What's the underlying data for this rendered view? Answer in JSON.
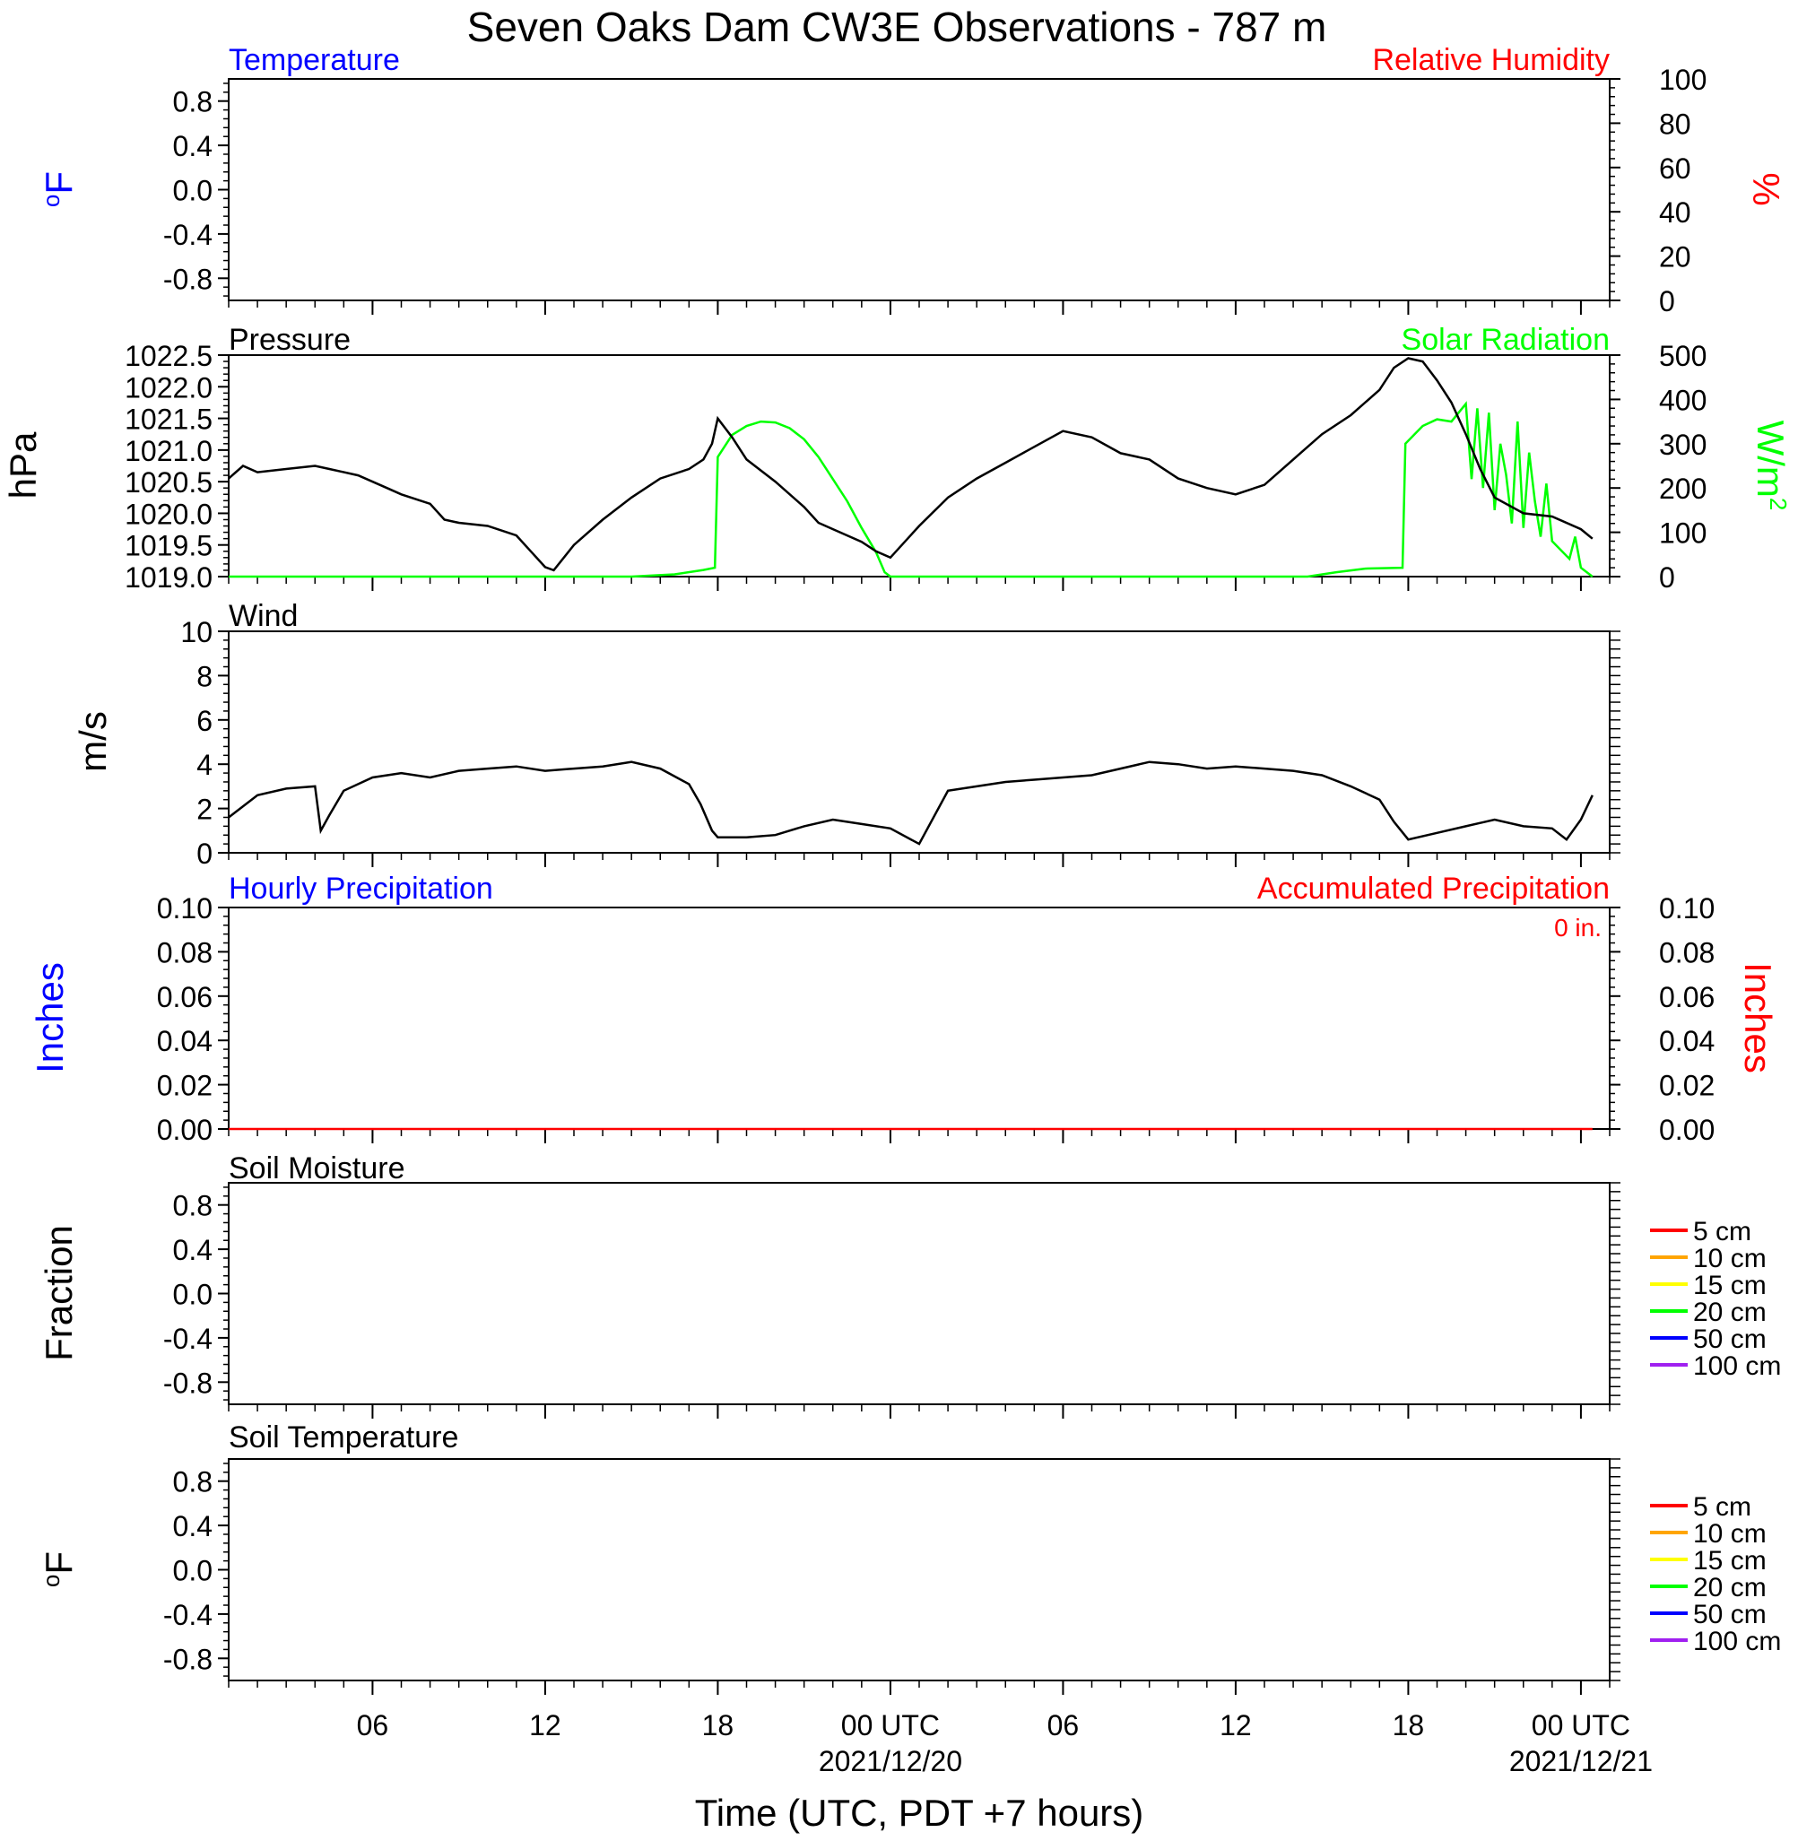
{
  "title": "Seven Oaks Dam CW3E Observations - 787 m",
  "x_axis": {
    "label": "Time (UTC, PDT +7 hours)",
    "range_hours": [
      0,
      48
    ],
    "ticks": [
      {
        "hour": 5,
        "label": "06"
      },
      {
        "hour": 11,
        "label": "12"
      },
      {
        "hour": 17,
        "label": "18"
      },
      {
        "hour": 23,
        "label": "00 UTC",
        "sublabel": "2021/12/20"
      },
      {
        "hour": 29,
        "label": "06"
      },
      {
        "hour": 35,
        "label": "12"
      },
      {
        "hour": 41,
        "label": "18"
      },
      {
        "hour": 47,
        "label": "00 UTC",
        "sublabel": "2021/12/21"
      }
    ]
  },
  "panels": {
    "temperature": {
      "left_title": "Temperature",
      "right_title": "Relative Humidity",
      "left_unit": "oF",
      "right_unit": "%",
      "left_ticks": [
        "0.8",
        "0.4",
        "0.0",
        "-0.4",
        "-0.8"
      ],
      "right_ticks": [
        "100",
        "80",
        "60",
        "40",
        "20",
        "0"
      ]
    },
    "pressure": {
      "left_title": "Pressure",
      "right_title": "Solar Radiation",
      "left_unit": "hPa",
      "right_unit": "W/m2",
      "left_ticks": [
        "1022.5",
        "1022.0",
        "1021.5",
        "1021.0",
        "1020.5",
        "1020.0",
        "1019.5",
        "1019.0"
      ],
      "right_ticks": [
        "500",
        "400",
        "300",
        "200",
        "100",
        "0"
      ]
    },
    "wind": {
      "left_title": "Wind",
      "left_unit": "m/s",
      "left_ticks": [
        "10",
        "8",
        "6",
        "4",
        "2",
        "0"
      ]
    },
    "precip": {
      "left_title": "Hourly Precipitation",
      "right_title": "Accumulated Precipitation",
      "accum_label": "0 in.",
      "left_unit": "Inches",
      "right_unit": "Inches",
      "left_ticks": [
        "0.10",
        "0.08",
        "0.06",
        "0.04",
        "0.02",
        "0.00"
      ],
      "right_ticks": [
        "0.10",
        "0.08",
        "0.06",
        "0.04",
        "0.02",
        "0.00"
      ]
    },
    "soil_moisture": {
      "left_title": "Soil Moisture",
      "left_unit": "Fraction",
      "left_ticks": [
        "0.8",
        "0.4",
        "0.0",
        "-0.4",
        "-0.8"
      ],
      "legend": [
        {
          "label": "5 cm",
          "color": "#ff0000"
        },
        {
          "label": "10 cm",
          "color": "#ffa500"
        },
        {
          "label": "15 cm",
          "color": "#ffff00"
        },
        {
          "label": "20 cm",
          "color": "#00ff00"
        },
        {
          "label": "50 cm",
          "color": "#0000ff"
        },
        {
          "label": "100 cm",
          "color": "#a020f0"
        }
      ]
    },
    "soil_temperature": {
      "left_title": "Soil Temperature",
      "left_unit": "oF",
      "left_ticks": [
        "0.8",
        "0.4",
        "0.0",
        "-0.4",
        "-0.8"
      ],
      "legend": [
        {
          "label": "5 cm",
          "color": "#ff0000"
        },
        {
          "label": "10 cm",
          "color": "#ffa500"
        },
        {
          "label": "15 cm",
          "color": "#ffff00"
        },
        {
          "label": "20 cm",
          "color": "#00ff00"
        },
        {
          "label": "50 cm",
          "color": "#0000ff"
        },
        {
          "label": "100 cm",
          "color": "#a020f0"
        }
      ]
    }
  },
  "chart_data": [
    {
      "type": "line",
      "title": "Pressure",
      "xlabel": "Time (UTC, PDT +7 hours)",
      "ylabel": "hPa",
      "ylim": [
        1019.0,
        1022.5
      ],
      "series": [
        {
          "name": "Pressure",
          "color": "#000000",
          "x": [
            0,
            0.5,
            1,
            2,
            3,
            3.5,
            4.5,
            5.5,
            6,
            7,
            7.5,
            8,
            9,
            10,
            10.5,
            11,
            11.3,
            12,
            13,
            14,
            15,
            16,
            16.5,
            16.8,
            17,
            17.5,
            18,
            19,
            20,
            20.5,
            21,
            22,
            22.5,
            23,
            24,
            25,
            26,
            27,
            28,
            29,
            30,
            31,
            32,
            33,
            34,
            35,
            36,
            37,
            38,
            39,
            40,
            40.5,
            41,
            41.5,
            42,
            42.5,
            43,
            43.5,
            44,
            45,
            46,
            47,
            47.4
          ],
          "y": [
            1020.55,
            1020.75,
            1020.65,
            1020.7,
            1020.75,
            1020.7,
            1020.6,
            1020.4,
            1020.3,
            1020.15,
            1019.9,
            1019.85,
            1019.8,
            1019.65,
            1019.4,
            1019.15,
            1019.1,
            1019.5,
            1019.9,
            1020.25,
            1020.55,
            1020.7,
            1020.85,
            1021.1,
            1021.5,
            1021.2,
            1020.85,
            1020.5,
            1020.1,
            1019.85,
            1019.75,
            1019.55,
            1019.4,
            1019.3,
            1019.8,
            1020.25,
            1020.55,
            1020.8,
            1021.05,
            1021.3,
            1021.2,
            1020.95,
            1020.85,
            1020.55,
            1020.4,
            1020.3,
            1020.45,
            1020.85,
            1021.25,
            1021.55,
            1021.95,
            1022.3,
            1022.45,
            1022.4,
            1022.1,
            1021.75,
            1021.25,
            1020.7,
            1020.25,
            1020.0,
            1019.95,
            1019.75,
            1019.6
          ]
        }
      ]
    },
    {
      "type": "line",
      "title": "Solar Radiation",
      "xlabel": "Time (UTC, PDT +7 hours)",
      "ylabel": "W/m2",
      "ylim": [
        0,
        500
      ],
      "series": [
        {
          "name": "Solar Radiation",
          "color": "#00ff00",
          "x": [
            0,
            14,
            15.5,
            16.5,
            16.9,
            17.0,
            17.5,
            18,
            18.5,
            19,
            19.5,
            20,
            20.5,
            21,
            21.5,
            22,
            22.5,
            22.8,
            23,
            24,
            37.5,
            38.5,
            39.5,
            40.8,
            40.9,
            41.5,
            42,
            42.5,
            43,
            43.2,
            43.4,
            43.6,
            43.8,
            44,
            44.2,
            44.4,
            44.6,
            44.8,
            45,
            45.2,
            45.4,
            45.6,
            45.8,
            46,
            46.3,
            46.6,
            46.8,
            47,
            47.4
          ],
          "y": [
            0,
            0,
            5,
            15,
            20,
            270,
            320,
            340,
            350,
            348,
            335,
            310,
            270,
            220,
            170,
            110,
            55,
            10,
            0,
            0,
            0,
            10,
            18,
            20,
            300,
            340,
            355,
            350,
            390,
            220,
            380,
            200,
            370,
            150,
            300,
            230,
            120,
            350,
            110,
            280,
            170,
            90,
            210,
            80,
            60,
            40,
            90,
            20,
            0
          ]
        }
      ]
    },
    {
      "type": "line",
      "title": "Wind",
      "xlabel": "Time (UTC, PDT +7 hours)",
      "ylabel": "m/s",
      "ylim": [
        0,
        10
      ],
      "series": [
        {
          "name": "Wind speed",
          "color": "#000000",
          "x": [
            0,
            1,
            2,
            3,
            3.2,
            3.5,
            4,
            5,
            6,
            7,
            8,
            9,
            10,
            11,
            12,
            13,
            14,
            15,
            16,
            16.4,
            16.8,
            17,
            18,
            19,
            20,
            21,
            22,
            23,
            24,
            25,
            26,
            27,
            28,
            29,
            30,
            31,
            32,
            33,
            34,
            35,
            36,
            37,
            38,
            39,
            40,
            40.5,
            41,
            42,
            43,
            44,
            45,
            46,
            46.5,
            47,
            47.4
          ],
          "y": [
            1.6,
            2.6,
            2.9,
            3.0,
            1.0,
            1.7,
            2.8,
            3.4,
            3.6,
            3.4,
            3.7,
            3.8,
            3.9,
            3.7,
            3.8,
            3.9,
            4.1,
            3.8,
            3.1,
            2.2,
            1.0,
            0.7,
            0.7,
            0.8,
            1.2,
            1.5,
            1.3,
            1.1,
            0.4,
            2.8,
            3.0,
            3.2,
            3.3,
            3.4,
            3.5,
            3.8,
            4.1,
            4.0,
            3.8,
            3.9,
            3.8,
            3.7,
            3.5,
            3.0,
            2.4,
            1.4,
            0.6,
            0.9,
            1.2,
            1.5,
            1.2,
            1.1,
            0.6,
            1.5,
            2.6
          ]
        }
      ]
    },
    {
      "type": "line",
      "title": "Hourly Precipitation",
      "xlabel": "Time (UTC, PDT +7 hours)",
      "ylabel": "Inches",
      "ylim": [
        0,
        0.1
      ],
      "series": [
        {
          "name": "Accumulated Precipitation",
          "color": "#ff0000",
          "x": [
            0,
            47.4
          ],
          "y": [
            0,
            0
          ]
        }
      ]
    }
  ]
}
